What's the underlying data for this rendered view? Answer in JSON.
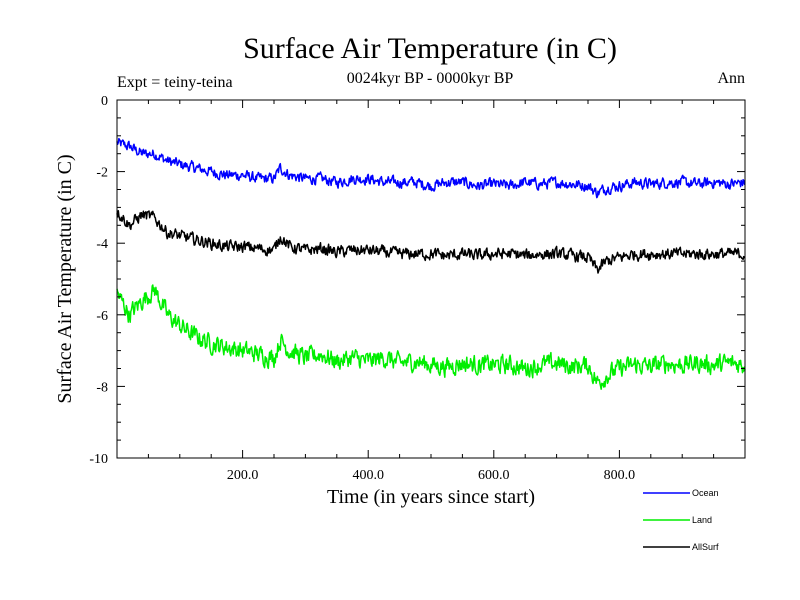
{
  "colors": {
    "background": "#ffffff",
    "axis": "#000000",
    "ocean": "#0000ff",
    "land": "#00ee00",
    "allsurf": "#000000"
  },
  "header": {
    "title": "Surface Air Temperature (in C)",
    "subtitle": "0024kyr BP - 0000kyr BP",
    "expt": "Expt = teiny-teina",
    "season": "Ann"
  },
  "chart_data": {
    "type": "line",
    "title": "Surface Air Temperature (in C)",
    "subtitle": "0024kyr BP - 0000kyr BP",
    "xlabel": "Time (in years since start)",
    "ylabel": "Surface Air Temperature (in C)",
    "xlim": [
      0,
      1000
    ],
    "ylim": [
      -10,
      0
    ],
    "xticks": [
      200,
      400,
      600,
      800
    ],
    "xtick_labels": [
      "200.0",
      "400.0",
      "600.0",
      "800.0"
    ],
    "yticks": [
      0,
      -2,
      -4,
      -6,
      -8,
      -10
    ],
    "ytick_labels": [
      "0",
      "-2",
      "-4",
      "-6",
      "-8",
      "-10"
    ],
    "grid": false,
    "legend_position": "bottom-right",
    "x": [
      0,
      20,
      40,
      60,
      80,
      100,
      125,
      150,
      175,
      200,
      225,
      250,
      260,
      275,
      300,
      325,
      350,
      375,
      400,
      425,
      450,
      475,
      500,
      525,
      550,
      575,
      600,
      625,
      650,
      675,
      700,
      725,
      750,
      765,
      780,
      800,
      825,
      850,
      875,
      900,
      925,
      950,
      975,
      1000
    ],
    "series": [
      {
        "name": "Ocean",
        "color": "#0000ff",
        "values": [
          -1.2,
          -1.3,
          -1.5,
          -1.5,
          -1.7,
          -1.8,
          -1.9,
          -2.0,
          -2.1,
          -2.1,
          -2.2,
          -2.2,
          -1.9,
          -2.1,
          -2.2,
          -2.2,
          -2.3,
          -2.2,
          -2.2,
          -2.3,
          -2.3,
          -2.3,
          -2.4,
          -2.3,
          -2.3,
          -2.4,
          -2.35,
          -2.4,
          -2.3,
          -2.35,
          -2.3,
          -2.35,
          -2.4,
          -2.6,
          -2.45,
          -2.4,
          -2.3,
          -2.35,
          -2.3,
          -2.3,
          -2.35,
          -2.3,
          -2.35,
          -2.3
        ]
      },
      {
        "name": "Land",
        "color": "#00ee00",
        "values": [
          -5.4,
          -6.0,
          -5.6,
          -5.3,
          -6.0,
          -6.3,
          -6.6,
          -6.8,
          -6.9,
          -7.0,
          -7.1,
          -7.2,
          -6.7,
          -7.0,
          -7.2,
          -7.1,
          -7.3,
          -7.2,
          -7.3,
          -7.2,
          -7.35,
          -7.3,
          -7.4,
          -7.45,
          -7.35,
          -7.4,
          -7.4,
          -7.4,
          -7.5,
          -7.4,
          -7.35,
          -7.45,
          -7.4,
          -7.9,
          -7.7,
          -7.5,
          -7.4,
          -7.45,
          -7.35,
          -7.4,
          -7.35,
          -7.4,
          -7.35,
          -7.4
        ]
      },
      {
        "name": "AllSurf",
        "color": "#000000",
        "values": [
          -3.1,
          -3.5,
          -3.2,
          -3.3,
          -3.7,
          -3.8,
          -3.9,
          -4.0,
          -4.1,
          -4.1,
          -4.15,
          -4.2,
          -3.8,
          -4.1,
          -4.2,
          -4.15,
          -4.25,
          -4.2,
          -4.2,
          -4.25,
          -4.3,
          -4.3,
          -4.3,
          -4.35,
          -4.3,
          -4.35,
          -4.3,
          -4.3,
          -4.35,
          -4.3,
          -4.3,
          -4.35,
          -4.4,
          -4.75,
          -4.5,
          -4.4,
          -4.3,
          -4.3,
          -4.3,
          -4.3,
          -4.3,
          -4.3,
          -4.3,
          -4.3
        ]
      }
    ]
  }
}
